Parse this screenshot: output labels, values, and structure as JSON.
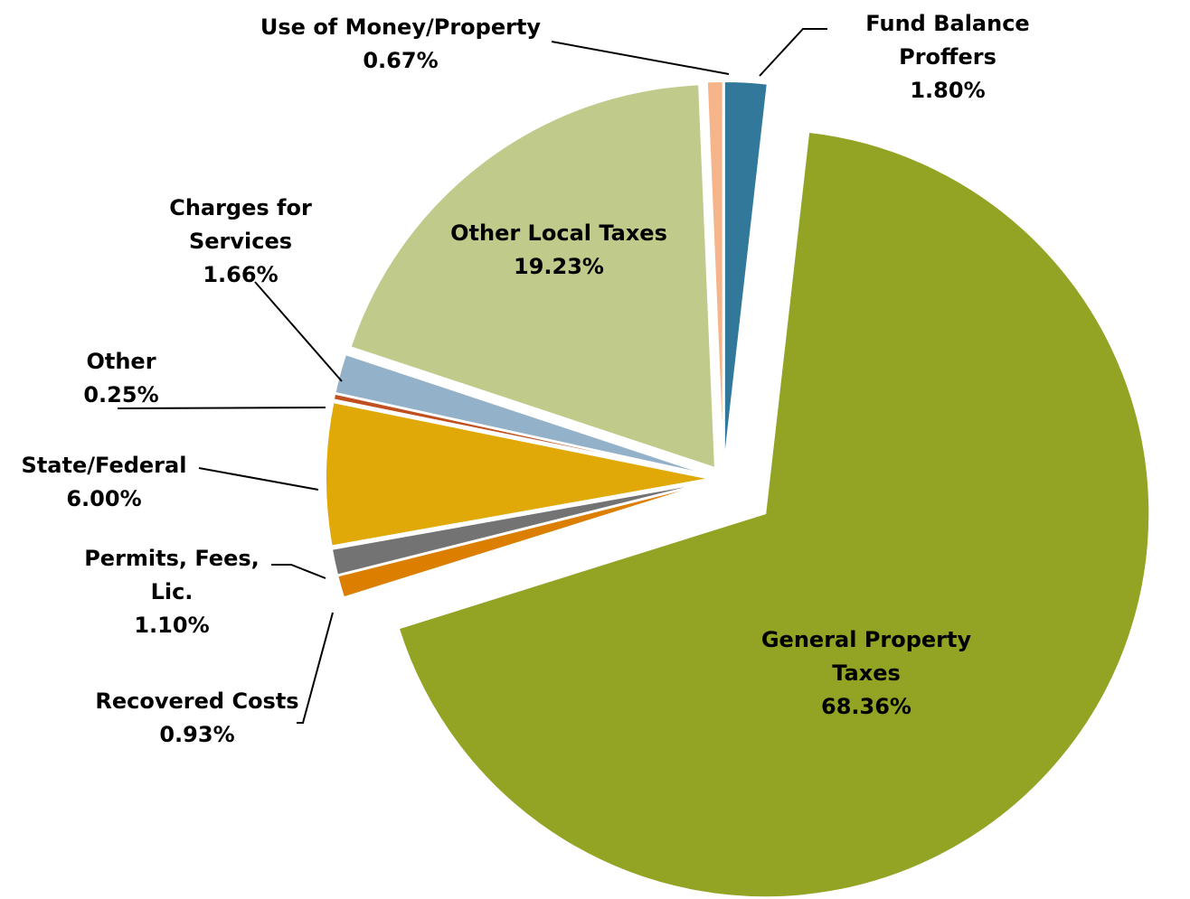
{
  "chart_data": {
    "type": "pie",
    "categories": [
      "Fund Balance Proffers",
      "General Property Taxes",
      "Recovered Costs",
      "Permits, Fees, Lic.",
      "State/Federal",
      "Other",
      "Charges for Services",
      "Other Local Taxes",
      "Use of Money/Property"
    ],
    "values": [
      1.8,
      68.36,
      0.93,
      1.1,
      6.0,
      0.25,
      1.66,
      19.23,
      0.67
    ],
    "value_labels": [
      "1.80%",
      "68.36%",
      "0.93%",
      "1.10%",
      "6.00%",
      "0.25%",
      "1.66%",
      "19.23%",
      "0.67%"
    ],
    "colors": [
      "#31789a",
      "#93a324",
      "#dc7e00",
      "#737373",
      "#e1a907",
      "#c0501f",
      "#93b1c9",
      "#c0cb8b",
      "#f5b48a"
    ]
  }
}
